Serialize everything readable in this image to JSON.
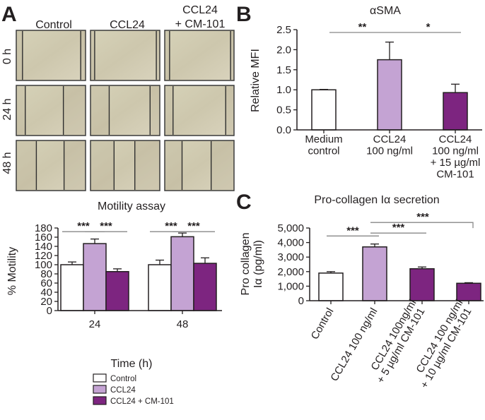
{
  "panels": {
    "a": "A",
    "b": "B",
    "c": "C"
  },
  "micrographs": {
    "columns": [
      "Control",
      "CCL24",
      "CCL24",
      "+ CM-101"
    ],
    "rows": [
      "0 h",
      "24 h",
      "48 h"
    ]
  },
  "colors": {
    "control": "#ffffff",
    "ccl24": "#c4a3d3",
    "cm101": "#7d2580",
    "axis": "#231f20",
    "bracket": "#888888"
  },
  "chart_data": [
    {
      "id": "motility",
      "type": "bar",
      "title": "Motility assay",
      "xlabel": "Time (h)",
      "ylabel": "% Motility",
      "categories": [
        "24",
        "48"
      ],
      "ylim": [
        0,
        180
      ],
      "yticks": [
        0,
        20,
        40,
        60,
        80,
        100,
        120,
        140,
        160,
        180
      ],
      "ytick_labels": [
        "0",
        "20",
        "40",
        "60",
        "80",
        "100",
        "120",
        "140",
        "160",
        "180"
      ],
      "series": [
        {
          "name": "Control",
          "color": "#ffffff",
          "values": [
            100,
            100
          ],
          "errors": [
            6,
            10
          ]
        },
        {
          "name": "CCL24",
          "color": "#c4a3d3",
          "values": [
            146,
            161
          ],
          "errors": [
            10,
            8
          ]
        },
        {
          "name": "CCL24 + CM-101",
          "color": "#7d2580",
          "values": [
            85,
            103
          ],
          "errors": [
            6,
            12
          ]
        }
      ],
      "significance": [
        {
          "category": 0,
          "from": 0,
          "to": 1,
          "label": "***"
        },
        {
          "category": 0,
          "from": 1,
          "to": 2,
          "label": "***"
        },
        {
          "category": 1,
          "from": 0,
          "to": 1,
          "label": "***"
        },
        {
          "category": 1,
          "from": 1,
          "to": 2,
          "label": "***"
        }
      ],
      "legend": [
        "Control",
        "CCL24",
        "CCL24 + CM-101"
      ]
    },
    {
      "id": "asma",
      "type": "bar",
      "title": "αSMA",
      "ylabel": "Relative MFI",
      "categories": [
        [
          "Medium",
          "control"
        ],
        [
          "CCL24",
          "100 ng/ml"
        ],
        [
          "CCL24",
          "100 ng/ml",
          "+ 15 µg/ml",
          "CM-101"
        ]
      ],
      "ylim": [
        0,
        2.5
      ],
      "yticks": [
        0,
        0.5,
        1,
        1.5,
        2,
        2.5
      ],
      "ytick_labels": [
        "0.0",
        "0.5",
        "1.0",
        "1.5",
        "2.0",
        "2.5"
      ],
      "values": [
        1.0,
        1.75,
        0.93
      ],
      "errors": [
        0.01,
        0.44,
        0.21
      ],
      "colors": [
        "#ffffff",
        "#c4a3d3",
        "#7d2580"
      ],
      "significance": [
        {
          "from": 0,
          "to": 1,
          "label": "**"
        },
        {
          "from": 1,
          "to": 2,
          "label": "*"
        }
      ]
    },
    {
      "id": "procollagen",
      "type": "bar",
      "title": "Pro-collagen Iα secretion",
      "ylabel": [
        "Pro collagen",
        "Iα (pg/ml)"
      ],
      "categories": [
        [
          "Control"
        ],
        [
          "CCL24 100 ng/ml"
        ],
        [
          "CCL24 100ng/ml",
          "+ 5 µg/ml CM-101"
        ],
        [
          "CCL24 100 ng/ml",
          "+ 10 µg/ml CM-101"
        ]
      ],
      "ylim": [
        0,
        5000
      ],
      "yticks": [
        0,
        1000,
        2000,
        3000,
        4000,
        5000
      ],
      "ytick_labels": [
        "0",
        "1,000",
        "2,000",
        "3,000",
        "4,000",
        "5,000"
      ],
      "values": [
        1900,
        3700,
        2200,
        1200
      ],
      "errors": [
        100,
        200,
        120,
        40
      ],
      "colors": [
        "#ffffff",
        "#c4a3d3",
        "#7d2580",
        "#7d2580"
      ],
      "significance": [
        {
          "from": 0,
          "to": 1,
          "label": "***"
        },
        {
          "from": 1,
          "to": 2,
          "label": "***"
        },
        {
          "from": 1,
          "to": 3,
          "label": "***"
        }
      ]
    }
  ]
}
